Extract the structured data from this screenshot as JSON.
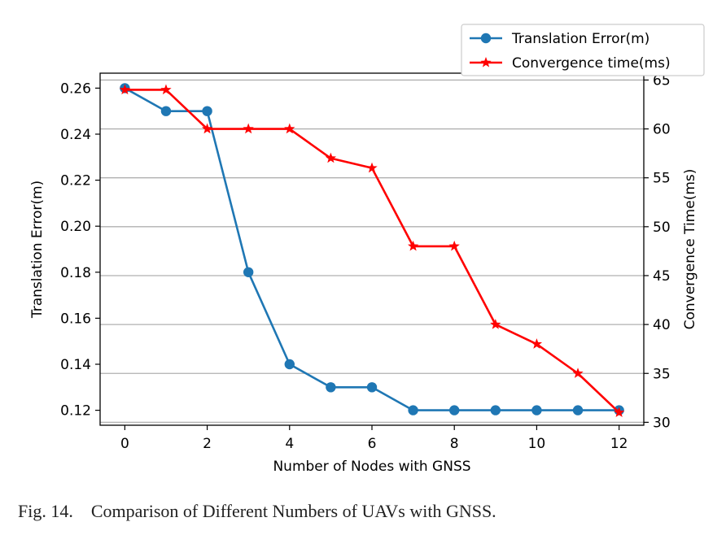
{
  "chart_data": {
    "type": "line",
    "xlabel": "Number of Nodes with GNSS",
    "ylabel_left": "Translation Error(m)",
    "ylabel_right": "Convergence Time(ms)",
    "x": [
      0,
      1,
      2,
      3,
      4,
      5,
      6,
      7,
      8,
      9,
      10,
      11,
      12
    ],
    "xlim": [
      -0.6,
      12.6
    ],
    "xticks": [
      0,
      2,
      4,
      6,
      8,
      10,
      12
    ],
    "ylim_left": [
      0.1135,
      0.2665
    ],
    "yticks_left": [
      0.12,
      0.14,
      0.16,
      0.18,
      0.2,
      0.22,
      0.24,
      0.26
    ],
    "ytick_labels_left": [
      "0.12",
      "0.14",
      "0.16",
      "0.18",
      "0.20",
      "0.22",
      "0.24",
      "0.26"
    ],
    "ylim_right": [
      29.7,
      65.7
    ],
    "yticks_right": [
      30,
      35,
      40,
      45,
      50,
      55,
      60,
      65
    ],
    "grid": "horizontal lines at right-axis ticks",
    "legend_position": "top-right, above plot",
    "series": [
      {
        "name": "Translation Error(m)",
        "axis": "left",
        "color": "#1f77b4",
        "marker": "circle",
        "values": [
          0.26,
          0.25,
          0.25,
          0.18,
          0.14,
          0.13,
          0.13,
          0.12,
          0.12,
          0.12,
          0.12,
          0.12,
          0.12
        ]
      },
      {
        "name": "Convergence time(ms)",
        "axis": "right",
        "color": "#ff0000",
        "marker": "star",
        "values": [
          64,
          64,
          60,
          60,
          60,
          57,
          56,
          48,
          48,
          40,
          38,
          35,
          31
        ]
      }
    ]
  },
  "caption": {
    "label": "Fig. 14.",
    "text": "Comparison of Different Numbers of UAVs with GNSS."
  }
}
